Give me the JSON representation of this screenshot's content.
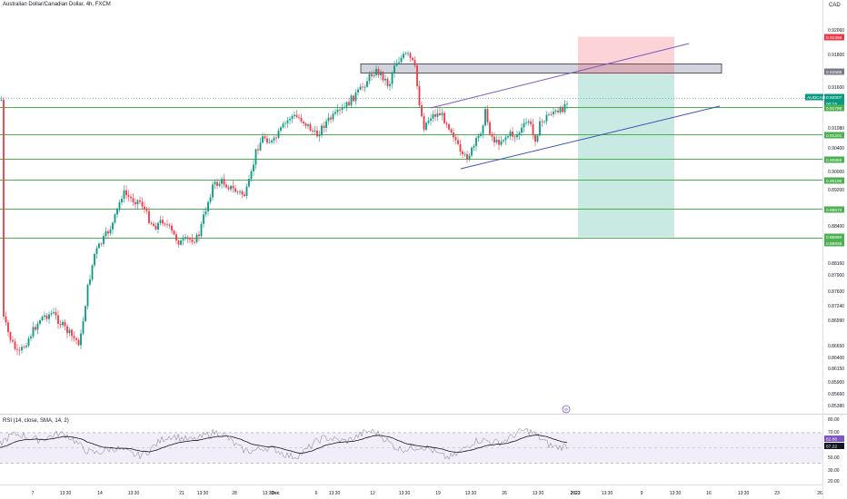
{
  "header": {
    "title": "Australian Dollar/Canadian Dollar, 4h, FXCM",
    "currency": "CAD"
  },
  "chart_data": {
    "type": "candlestick",
    "y_ticks": [
      "0.92060",
      "0.91800",
      "0.91600",
      "0.91080",
      "0.90400",
      "0.90000",
      "0.89200",
      "0.88400",
      "0.88160",
      "0.87900",
      "0.87600",
      "0.87240",
      "0.86990",
      "0.86650",
      "0.86400",
      "0.86150",
      "0.85900",
      "0.85660",
      "0.85380"
    ],
    "x_ticks": [
      "7",
      "13:30",
      "14",
      "13:30",
      "21",
      "13:30",
      "28",
      "13:30",
      "Dec",
      "6",
      "13:30",
      "12",
      "13:30",
      "19",
      "13:30",
      "26",
      "13:30",
      "2023",
      "13:30",
      "9",
      "13:30",
      "16",
      "13:30",
      "23",
      "26"
    ],
    "price_labels": [
      {
        "text": "0.92399",
        "color": "#f23645"
      },
      {
        "text": "0.92585",
        "color": "#787b86"
      },
      {
        "text": "0.92007",
        "color": "#089981"
      },
      {
        "text": "00:15",
        "color": "#089981"
      },
      {
        "text": "0.91796",
        "color": "#4caf50"
      },
      {
        "text": "0.91201",
        "color": "#4caf50"
      },
      {
        "text": "0.90859",
        "color": "#4caf50"
      },
      {
        "text": "0.90190",
        "color": "#4caf50"
      },
      {
        "text": "0.89573",
        "color": "#4caf50"
      },
      {
        "text": "0.88960",
        "color": "#4caf50"
      },
      {
        "text": "0.88935",
        "color": "#4caf50"
      }
    ],
    "symbol_badge": "AUDCAD",
    "horizontal_levels": [
      0.91796,
      0.91201,
      0.90859,
      0.9019,
      0.89573,
      0.88935
    ],
    "resistance_zone": [
      0.9239,
      0.92585
    ],
    "position_tool": {
      "stop": 0.92399,
      "entry": 0.92007,
      "target": 0.8896
    },
    "rsi": {
      "label": "RSI (14, close, SMA, 14, 2)",
      "ticks": [
        "80.00",
        "70.00",
        "50.00",
        "30.00",
        "20.00"
      ],
      "value": "62.86",
      "sma": "57.22",
      "upper_band": 70,
      "lower_band": 30
    },
    "colors": {
      "up": "#089981",
      "down": "#f23645",
      "level": "#4caf50",
      "channel": "#7e57c2"
    }
  }
}
